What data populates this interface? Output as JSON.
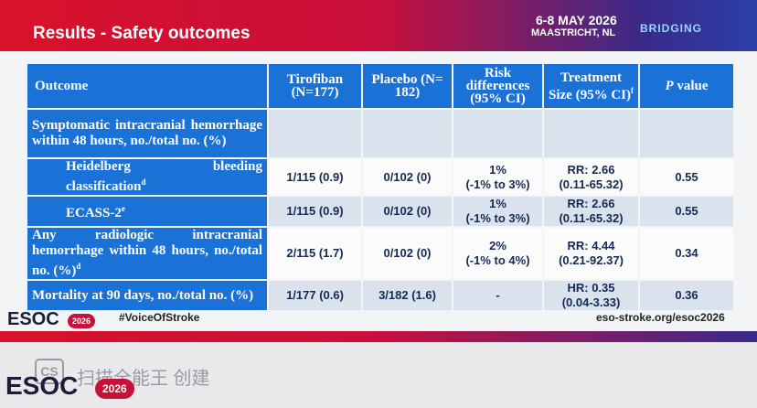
{
  "header": {
    "title": "Results - Safety outcomes",
    "date": "6-8 MAY 2026",
    "place": "MAASTRICHT, NL",
    "logo": "BRIDGING"
  },
  "table": {
    "columns": [
      {
        "text": "Outcome"
      },
      {
        "text": "Tirofiban (N=177)"
      },
      {
        "text": "Placebo (N= 182)"
      },
      {
        "text": "Risk differences (95% CI)"
      },
      {
        "text": "Treatment Size (95% CI)",
        "sup": "f"
      },
      {
        "italic": "P",
        "text": "value"
      }
    ],
    "rows": [
      {
        "label": {
          "text": "Symptomatic intracranial hemorrhage within 48 hours, no./total no. (%)"
        },
        "cells": []
      },
      {
        "label": {
          "text": "Heidelberg bleeding classification",
          "sup": "d"
        },
        "indent": true,
        "cells": [
          [
            "1/115 (0.9)"
          ],
          [
            "0/102 (0)"
          ],
          [
            "1%",
            "(-1% to 3%)"
          ],
          [
            "RR: 2.66",
            "(0.11-65.32)"
          ],
          [
            "0.55"
          ]
        ]
      },
      {
        "label": {
          "text": "ECASS-2",
          "sup": "e"
        },
        "indent": true,
        "cells": [
          [
            "1/115 (0.9)"
          ],
          [
            "0/102 (0)"
          ],
          [
            "1%",
            "(-1% to 3%)"
          ],
          [
            "RR: 2.66",
            "(0.11-65.32)"
          ],
          [
            "0.55"
          ]
        ]
      },
      {
        "label": {
          "text": "Any radiologic intracranial hemorrhage within 48 hours, no./total no. (%)",
          "sup": "d"
        },
        "cells": [
          [
            "2/115 (1.7)"
          ],
          [
            "0/102 (0)"
          ],
          [
            "2%",
            "(-1% to 4%)"
          ],
          [
            "RR: 4.44",
            "(0.21-92.37)"
          ],
          [
            "0.34"
          ]
        ]
      },
      {
        "label": {
          "text": "Mortality at 90 days, no./total no. (%)"
        },
        "cells": [
          [
            "1/177 (0.6)"
          ],
          [
            "3/182 (1.6)"
          ],
          [
            "-"
          ],
          [
            "HR: 0.35",
            "(0.04-3.33)"
          ],
          [
            "0.36"
          ]
        ]
      }
    ]
  },
  "footer": {
    "brand": "ESOC",
    "year": "2026",
    "hashtag": "#VoiceOfStroke",
    "url": "eso-stroke.org/esoc2026"
  },
  "watermark": {
    "icon": "CS",
    "text": "扫描全能王 创建",
    "brand": "ESOC",
    "year": "2026"
  }
}
